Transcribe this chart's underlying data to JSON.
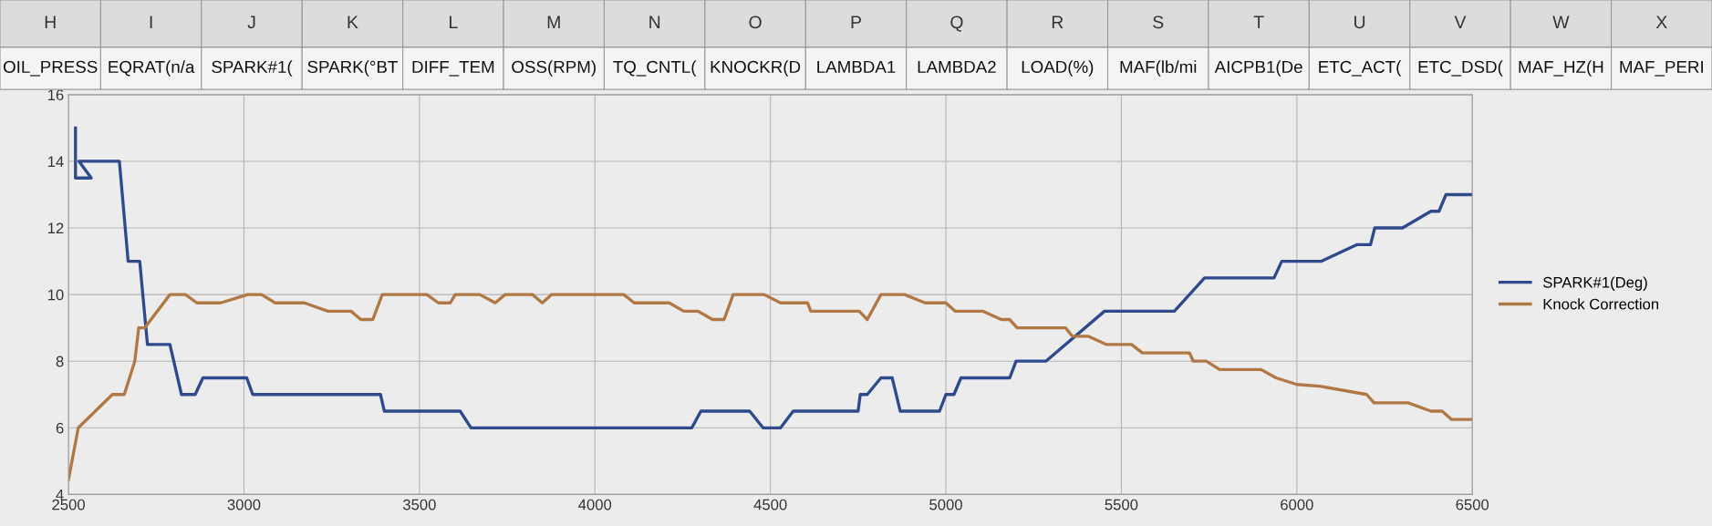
{
  "chart_data": {
    "type": "line",
    "xlim": [
      2500,
      6500
    ],
    "xticks": [
      2500,
      3000,
      3500,
      4000,
      4500,
      5000,
      5500,
      6000,
      6500
    ],
    "ylim": [
      4,
      16
    ],
    "yticks": [
      4,
      6,
      8,
      10,
      12,
      14,
      16
    ],
    "grid": true,
    "legend": "right",
    "marker": "none",
    "line_style": "solid",
    "series": [
      {
        "name": "SPARK#1(Deg)",
        "color": "#2e4a8c",
        "x": [
          2520,
          2520,
          2565,
          2530,
          2645,
          2670,
          2703,
          2725,
          2789,
          2822,
          2861,
          2883,
          3008,
          3025,
          3389,
          3400,
          3616,
          3647,
          4276,
          4302,
          4441,
          4479,
          4529,
          4565,
          4750,
          4756,
          4776,
          4815,
          4847,
          4870,
          4982,
          5000,
          5023,
          5043,
          5182,
          5200,
          5285,
          5452,
          5651,
          5694,
          5737,
          5935,
          5957,
          6070,
          6172,
          6210,
          6222,
          6301,
          6382,
          6405,
          6425,
          6495
        ],
        "values": [
          15,
          13.5,
          13.5,
          14,
          14,
          11,
          11,
          8.5,
          8.5,
          7,
          7,
          7.5,
          7.5,
          7,
          7,
          6.5,
          6.5,
          6,
          6,
          6.5,
          6.5,
          6,
          6,
          6.5,
          6.5,
          7,
          7,
          7.5,
          7.5,
          6.5,
          6.5,
          7,
          7,
          7.5,
          7.5,
          8,
          8,
          9.5,
          9.5,
          10,
          10.5,
          10.5,
          11,
          11,
          11.5,
          11.5,
          12,
          12,
          12.5,
          12.5,
          13,
          13
        ]
      },
      {
        "name": "Knock Correction",
        "color": "#b07844",
        "x": [
          2500,
          2528,
          2625,
          2659,
          2689,
          2700,
          2717,
          2789,
          2833,
          2866,
          2933,
          3011,
          3050,
          3089,
          3172,
          3239,
          3305,
          3333,
          3367,
          3394,
          3521,
          3554,
          3588,
          3602,
          3672,
          3716,
          3744,
          3822,
          3850,
          3877,
          4082,
          4112,
          4212,
          4253,
          4294,
          4335,
          4368,
          4394,
          4482,
          4529,
          4606,
          4615,
          4753,
          4776,
          4815,
          4882,
          4941,
          5000,
          5027,
          5106,
          5158,
          5182,
          5203,
          5341,
          5360,
          5405,
          5458,
          5529,
          5560,
          5694,
          5705,
          5742,
          5780,
          5898,
          5941,
          6000,
          6065,
          6199,
          6220,
          6317,
          6382,
          6414,
          6441,
          6500
        ],
        "values": [
          4.45,
          6,
          7,
          7,
          8,
          9,
          9,
          10,
          10,
          9.75,
          9.75,
          10,
          10,
          9.75,
          9.75,
          9.5,
          9.5,
          9.25,
          9.25,
          10,
          10,
          9.75,
          9.75,
          10,
          10,
          9.75,
          10,
          10,
          9.75,
          10,
          10,
          9.75,
          9.75,
          9.5,
          9.5,
          9.25,
          9.25,
          10,
          10,
          9.75,
          9.75,
          9.5,
          9.5,
          9.25,
          10,
          10,
          9.75,
          9.75,
          9.5,
          9.5,
          9.25,
          9.25,
          9,
          9,
          8.75,
          8.75,
          8.5,
          8.5,
          8.25,
          8.25,
          8,
          8,
          7.75,
          7.75,
          7.5,
          7.3,
          7.25,
          7,
          6.75,
          6.75,
          6.5,
          6.5,
          6.25,
          6.25
        ]
      }
    ],
    "annotations": [
      "H",
      "I",
      "J",
      "K",
      "L",
      "M",
      "N",
      "O",
      "P",
      "Q",
      "R",
      "S",
      "T",
      "U",
      "V",
      "W",
      "X",
      "OIL_PRESS",
      "EQRAT(n/a",
      "SPARK#1(",
      "SPARK(°BT",
      "DIFF_TEM",
      "OSS(RPM)",
      "TQ_CNTL(",
      "KNOCKR(D",
      "LAMBDA1",
      "LAMBDA2",
      "LOAD(%)",
      "MAF(lb/mi",
      "AICPB1(De",
      "ETC_ACT(",
      "ETC_DSD(",
      "MAF_HZ(H",
      "MAF_PERI"
    ]
  }
}
